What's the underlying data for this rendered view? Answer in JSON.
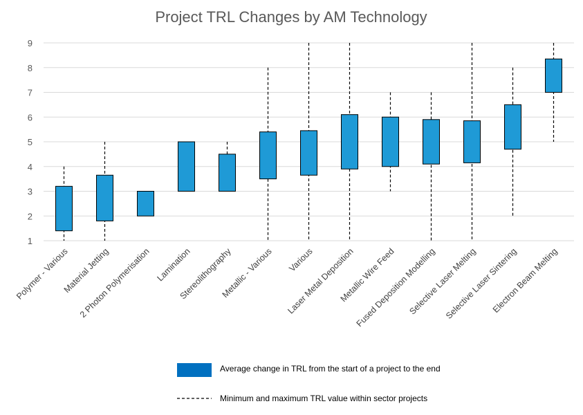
{
  "chart_data": {
    "type": "box",
    "title": "Project TRL Changes by AM Technology",
    "xlabel": "",
    "ylabel": "",
    "ylim": [
      1,
      9
    ],
    "yticks": [
      1,
      2,
      3,
      4,
      5,
      6,
      7,
      8,
      9
    ],
    "grid": true,
    "categories": [
      "Polymer - Various",
      "Material Jetting",
      "2 Photon Polymerisation",
      "Lamination",
      "Stereolithography",
      "Metallic - Various",
      "Various",
      "Laser Metal Deposition",
      "Metallic Wire Feed",
      "Fused Deposition Modelling",
      "Selective Laser Melting",
      "Selective Laser Sintering",
      "Electron Beam Melting"
    ],
    "series": [
      {
        "name": "Average change in TRL from the start of a project to the end",
        "color": "#1f9ad6",
        "start": [
          1.4,
          1.8,
          2.0,
          3.0,
          3.0,
          3.5,
          3.65,
          3.9,
          4.0,
          4.1,
          4.15,
          4.7,
          7.0
        ],
        "end": [
          3.2,
          3.65,
          3.0,
          5.0,
          4.5,
          5.4,
          5.45,
          6.1,
          6.0,
          5.9,
          5.85,
          6.5,
          8.35
        ]
      },
      {
        "name": "Minimum and maximum TRL value within sector projects",
        "color": "#000000",
        "min": [
          1,
          1,
          2,
          3,
          3,
          1,
          1,
          1,
          3,
          1,
          1,
          2,
          5
        ],
        "max": [
          4,
          5,
          3,
          5,
          5,
          8,
          9,
          9,
          7,
          7,
          9,
          8,
          9
        ]
      }
    ],
    "legend_position": "bottom"
  }
}
